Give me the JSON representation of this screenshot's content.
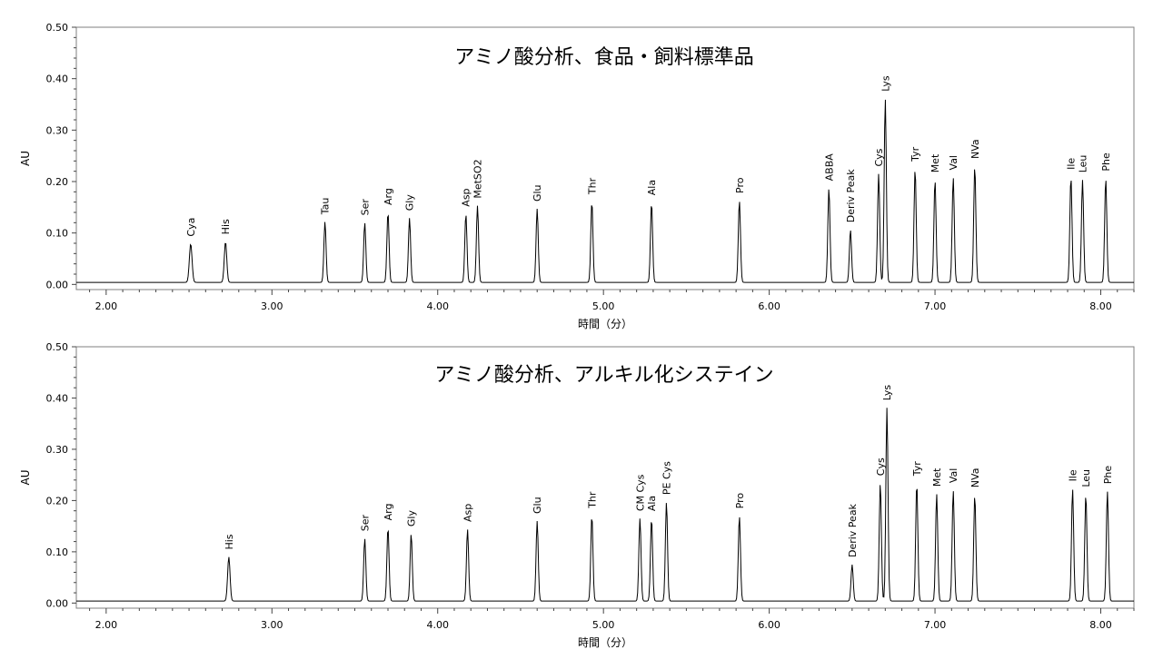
{
  "chart_data": [
    {
      "type": "line",
      "title": "アミノ酸分析、食品・飼料標準品",
      "xlabel": "時間（分）",
      "ylabel": "AU",
      "xlim": [
        1.82,
        8.2
      ],
      "ylim": [
        -0.01,
        0.5
      ],
      "grid": false,
      "x_ticks": [
        "2.00",
        "3.00",
        "4.00",
        "5.00",
        "6.00",
        "7.00",
        "8.00"
      ],
      "y_ticks": [
        "0.00",
        "0.10",
        "0.20",
        "0.30",
        "0.40",
        "0.50"
      ],
      "peaks": [
        {
          "label": "Cya",
          "x": 2.51,
          "y": 0.079
        },
        {
          "label": "His",
          "x": 2.72,
          "y": 0.083
        },
        {
          "label": "Tau",
          "x": 3.32,
          "y": 0.122
        },
        {
          "label": "Ser",
          "x": 3.56,
          "y": 0.12
        },
        {
          "label": "Arg",
          "x": 3.7,
          "y": 0.14
        },
        {
          "label": "Gly",
          "x": 3.83,
          "y": 0.129
        },
        {
          "label": "Asp",
          "x": 4.17,
          "y": 0.137
        },
        {
          "label": "MetSO2",
          "x": 4.24,
          "y": 0.153
        },
        {
          "label": "Glu",
          "x": 4.6,
          "y": 0.147
        },
        {
          "label": "Thr",
          "x": 4.93,
          "y": 0.161
        },
        {
          "label": "Ala",
          "x": 5.29,
          "y": 0.159
        },
        {
          "label": "Pro",
          "x": 5.82,
          "y": 0.163
        },
        {
          "label": "ABBA",
          "x": 6.36,
          "y": 0.187
        },
        {
          "label": "Deriv Peak",
          "x": 6.49,
          "y": 0.106
        },
        {
          "label": "Cys",
          "x": 6.66,
          "y": 0.215
        },
        {
          "label": "Lys",
          "x": 6.7,
          "y": 0.361
        },
        {
          "label": "Tyr",
          "x": 6.88,
          "y": 0.225
        },
        {
          "label": "Met",
          "x": 7.0,
          "y": 0.203
        },
        {
          "label": "Val",
          "x": 7.11,
          "y": 0.208
        },
        {
          "label": "NVa",
          "x": 7.24,
          "y": 0.23
        },
        {
          "label": "Ile",
          "x": 7.82,
          "y": 0.209
        },
        {
          "label": "Leu",
          "x": 7.89,
          "y": 0.203
        },
        {
          "label": "Phe",
          "x": 8.03,
          "y": 0.206
        }
      ]
    },
    {
      "type": "line",
      "title": "アミノ酸分析、アルキル化システイン",
      "xlabel": "時間（分）",
      "ylabel": "AU",
      "xlim": [
        1.82,
        8.2
      ],
      "ylim": [
        -0.01,
        0.5
      ],
      "grid": false,
      "x_ticks": [
        "2.00",
        "3.00",
        "4.00",
        "5.00",
        "6.00",
        "7.00",
        "8.00"
      ],
      "y_ticks": [
        "0.00",
        "0.10",
        "0.20",
        "0.30",
        "0.40",
        "0.50"
      ],
      "peaks": [
        {
          "label": "His",
          "x": 2.74,
          "y": 0.09
        },
        {
          "label": "Ser",
          "x": 3.56,
          "y": 0.126
        },
        {
          "label": "Arg",
          "x": 3.7,
          "y": 0.147
        },
        {
          "label": "Gly",
          "x": 3.84,
          "y": 0.135
        },
        {
          "label": "Asp",
          "x": 4.18,
          "y": 0.144
        },
        {
          "label": "Glu",
          "x": 4.6,
          "y": 0.16
        },
        {
          "label": "Thr",
          "x": 4.93,
          "y": 0.171
        },
        {
          "label": "CM Cys",
          "x": 5.22,
          "y": 0.165
        },
        {
          "label": "Ala",
          "x": 5.29,
          "y": 0.165
        },
        {
          "label": "PE Cys",
          "x": 5.38,
          "y": 0.197
        },
        {
          "label": "Pro",
          "x": 5.82,
          "y": 0.17
        },
        {
          "label": "Deriv Peak",
          "x": 6.5,
          "y": 0.075
        },
        {
          "label": "Cys",
          "x": 6.67,
          "y": 0.234
        },
        {
          "label": "Lys",
          "x": 6.71,
          "y": 0.381
        },
        {
          "label": "Tyr",
          "x": 6.89,
          "y": 0.234
        },
        {
          "label": "Met",
          "x": 7.01,
          "y": 0.213
        },
        {
          "label": "Val",
          "x": 7.11,
          "y": 0.22
        },
        {
          "label": "NVa",
          "x": 7.24,
          "y": 0.211
        },
        {
          "label": "Ile",
          "x": 7.83,
          "y": 0.223
        },
        {
          "label": "Leu",
          "x": 7.91,
          "y": 0.212
        },
        {
          "label": "Phe",
          "x": 8.04,
          "y": 0.218
        }
      ]
    }
  ]
}
